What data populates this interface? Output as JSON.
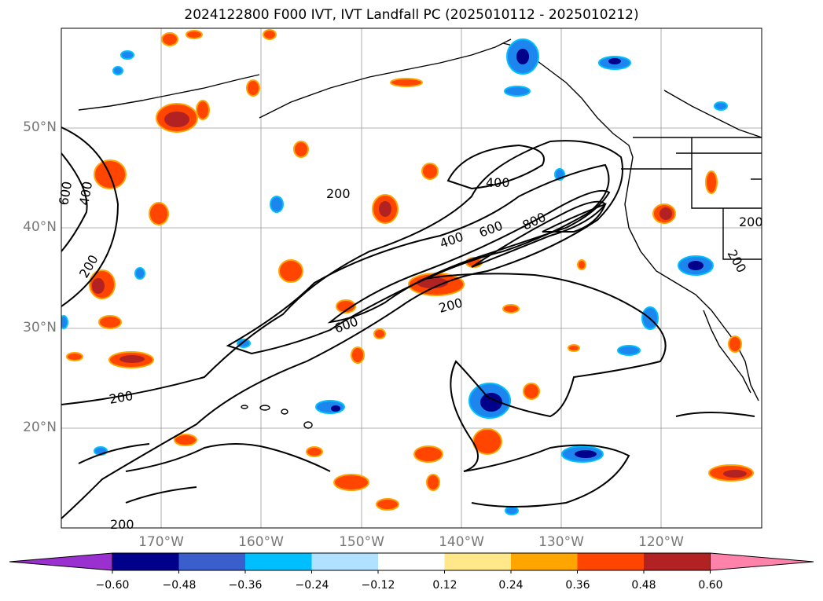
{
  "title": "2024122800 F000 IVT, IVT Landfall PC (2025010112 - 2025010212)",
  "map": {
    "lat_labels": [
      "50°N",
      "40°N",
      "30°N",
      "20°N"
    ],
    "lon_labels": [
      "170°W",
      "160°W",
      "150°W",
      "140°W",
      "130°W",
      "120°W"
    ],
    "extent": {
      "lon": [
        -180,
        -110
      ],
      "lat": [
        10,
        60
      ]
    },
    "grid": true,
    "contour_levels_shown": [
      "200",
      "400",
      "600",
      "800"
    ],
    "contour_labels": [
      {
        "text": "600"
      },
      {
        "text": "400"
      },
      {
        "text": "200"
      },
      {
        "text": "200"
      },
      {
        "text": "400"
      },
      {
        "text": "400"
      },
      {
        "text": "600"
      },
      {
        "text": "800"
      },
      {
        "text": "200"
      },
      {
        "text": "600"
      },
      {
        "text": "200"
      },
      {
        "text": "200"
      },
      {
        "text": "200"
      },
      {
        "text": "200"
      }
    ]
  },
  "colorbar": {
    "tick_labels": [
      "−0.60",
      "−0.48",
      "−0.36",
      "−0.24",
      "−0.12",
      "0.12",
      "0.24",
      "0.36",
      "0.48",
      "0.60"
    ],
    "colors": [
      "#9b30d0",
      "#00008b",
      "#3a5fcd",
      "#00bfff",
      "#b0e2ff",
      "#ffffff",
      "#ffe78a",
      "#ffa500",
      "#ff4500",
      "#b22222",
      "#ff82ab"
    ],
    "extend": "both"
  }
}
